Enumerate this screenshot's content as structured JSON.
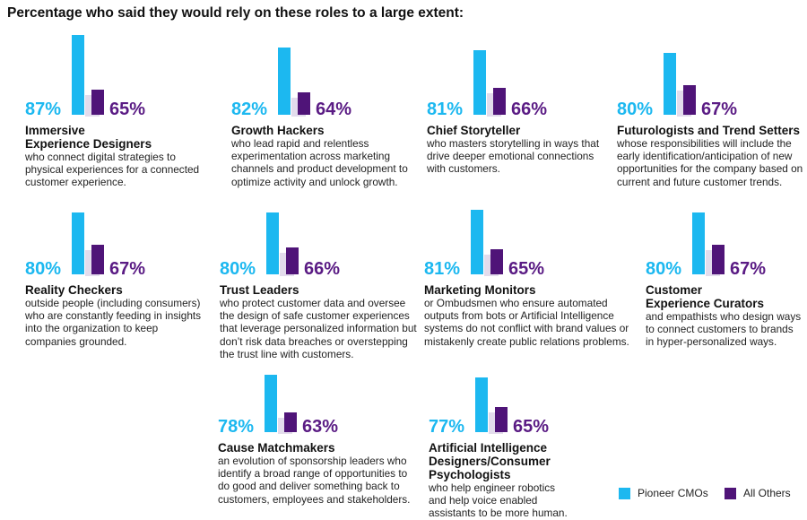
{
  "header": {
    "title": "Percentage who said they would rely on these roles to a large extent:"
  },
  "legend": [
    {
      "name": "Pioneer CMOs",
      "color": "#1cb8f0"
    },
    {
      "name": "All Others",
      "color": "#4f1478"
    }
  ],
  "colors": {
    "pioneer": "#1cb8f0",
    "others": "#4f1478",
    "others_label": "#5a1b84",
    "shadow": "#e3dcec"
  },
  "chart_data": {
    "type": "bar",
    "title": "Percentage who said they would rely on these roles to a large extent:",
    "ylim": [
      0,
      100
    ],
    "grid": false,
    "legend_position": "bottom-right",
    "series": [
      {
        "name": "Pioneer CMOs",
        "values": [
          87,
          82,
          81,
          80,
          80,
          80,
          81,
          80,
          78,
          77
        ]
      },
      {
        "name": "All Others",
        "values": [
          65,
          64,
          66,
          67,
          67,
          66,
          65,
          67,
          63,
          65
        ]
      }
    ],
    "categories": [
      {
        "title": "Immersive Experience Designers",
        "title_lines": [
          "Immersive",
          "Experience Designers"
        ],
        "desc_lines": [
          "who connect digital strategies to",
          "physical experiences for a connected",
          "customer experience."
        ],
        "pioneer_label": "87%",
        "others_label": "65%"
      },
      {
        "title": "Growth Hackers",
        "title_lines": [
          "Growth Hackers"
        ],
        "desc_lines": [
          "who lead rapid and relentless",
          "experimentation across marketing",
          "channels and product development to",
          "optimize activity and unlock growth."
        ],
        "pioneer_label": "82%",
        "others_label": "64%"
      },
      {
        "title": "Chief Storyteller",
        "title_lines": [
          "Chief Storyteller"
        ],
        "desc_lines": [
          "who masters storytelling in ways that",
          "drive deeper emotional connections",
          "with customers."
        ],
        "pioneer_label": "81%",
        "others_label": "66%"
      },
      {
        "title": "Futurologists and Trend Setters",
        "title_lines": [
          "Futurologists and Trend Setters"
        ],
        "desc_lines": [
          "whose responsibilities will include the",
          "early identification/anticipation of new",
          "opportunities for the company based on",
          "current and future customer trends."
        ],
        "pioneer_label": "80%",
        "others_label": "67%"
      },
      {
        "title": "Reality Checkers",
        "title_lines": [
          "Reality Checkers"
        ],
        "desc_lines": [
          "outside people (including consumers)",
          "who are constantly feeding in insights",
          "into the organization to keep",
          "companies grounded."
        ],
        "pioneer_label": "80%",
        "others_label": "67%"
      },
      {
        "title": "Trust Leaders",
        "title_lines": [
          "Trust Leaders"
        ],
        "desc_lines": [
          "who protect customer data and oversee",
          "the design of safe customer experiences",
          "that leverage personalized information but",
          "don’t risk data breaches or overstepping",
          "the trust line with customers."
        ],
        "pioneer_label": "80%",
        "others_label": "66%"
      },
      {
        "title": "Marketing Monitors",
        "title_lines": [
          "Marketing Monitors"
        ],
        "desc_lines": [
          "or Ombudsmen who ensure automated",
          "outputs from bots or Artificial Intelligence",
          "systems do not conflict with brand values or",
          "mistakenly create public relations problems."
        ],
        "pioneer_label": "81%",
        "others_label": "65%"
      },
      {
        "title": "Customer Experience Curators",
        "title_lines": [
          "Customer",
          "Experience Curators"
        ],
        "desc_lines": [
          "and empathists who design ways",
          "to connect customers to brands",
          "in hyper-personalized ways."
        ],
        "pioneer_label": "80%",
        "others_label": "67%"
      },
      {
        "title": "Cause Matchmakers",
        "title_lines": [
          "Cause Matchmakers"
        ],
        "desc_lines": [
          "an evolution of sponsorship leaders who",
          "identify a broad range of opportunities to",
          "do good and deliver something back to",
          "customers, employees and stakeholders."
        ],
        "pioneer_label": "78%",
        "others_label": "63%"
      },
      {
        "title": "Artificial Intelligence Designers/Consumer Psychologists",
        "title_lines": [
          "Artificial Intelligence",
          "Designers/Consumer",
          "Psychologists"
        ],
        "desc_lines": [
          "who help engineer robotics",
          "and help voice enabled",
          "assistants to be more human."
        ],
        "pioneer_label": "77%",
        "others_label": "65%"
      }
    ]
  }
}
